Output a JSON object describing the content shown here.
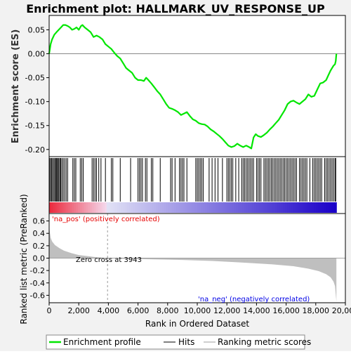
{
  "title": "Enrichment plot: HALLMARK_UV_RESPONSE_UP",
  "colors": {
    "profile": "#00e600",
    "hits": "#000000",
    "ranking": "#bfbfbf",
    "pos_label": "#e60000",
    "neg_label": "#0000e6",
    "zero_cross_line": "#999999"
  },
  "chart_data": [
    {
      "name": "enrichment-profile",
      "type": "line",
      "ylabel": "Enrichment score (ES)",
      "xlim": [
        0,
        20000
      ],
      "ylim": [
        -0.215,
        0.08
      ],
      "yticks": [
        "0.05",
        "0.00",
        "-0.05",
        "-0.10",
        "-0.15",
        "-0.20"
      ],
      "ytick_values": [
        0.05,
        0.0,
        -0.05,
        -0.1,
        -0.15,
        -0.2
      ],
      "grid": false,
      "series": [
        {
          "name": "Enrichment profile",
          "x": [
            0,
            100,
            200,
            350,
            500,
            650,
            800,
            950,
            1100,
            1250,
            1400,
            1550,
            1700,
            1850,
            2000,
            2150,
            2250,
            2400,
            2600,
            2800,
            3000,
            3200,
            3400,
            3600,
            3800,
            4000,
            4200,
            4400,
            4600,
            4800,
            5000,
            5200,
            5400,
            5600,
            5800,
            6000,
            6200,
            6400,
            6550,
            6700,
            6900,
            7100,
            7300,
            7500,
            7700,
            7900,
            8100,
            8300,
            8500,
            8700,
            8900,
            9100,
            9300,
            9500,
            9700,
            9900,
            10100,
            10300,
            10500,
            10700,
            10900,
            11100,
            11300,
            11500,
            11700,
            11900,
            12100,
            12300,
            12500,
            12700,
            12900,
            13100,
            13300,
            13500,
            13650,
            13800,
            13950,
            14100,
            14300,
            14500,
            14700,
            14900,
            15100,
            15300,
            15500,
            15700,
            15900,
            16100,
            16300,
            16500,
            16700,
            16900,
            17100,
            17300,
            17500,
            17700,
            17900,
            18100,
            18300,
            18500,
            18700,
            18850,
            19000,
            19100,
            19200,
            19300,
            19350,
            19395
          ],
          "y": [
            0.0,
            0.02,
            0.03,
            0.04,
            0.045,
            0.05,
            0.055,
            0.06,
            0.06,
            0.058,
            0.055,
            0.05,
            0.052,
            0.055,
            0.05,
            0.058,
            0.06,
            0.055,
            0.05,
            0.045,
            0.035,
            0.038,
            0.035,
            0.03,
            0.02,
            0.015,
            0.01,
            0.002,
            -0.005,
            -0.01,
            -0.02,
            -0.03,
            -0.035,
            -0.04,
            -0.05,
            -0.055,
            -0.055,
            -0.057,
            -0.05,
            -0.055,
            -0.062,
            -0.07,
            -0.078,
            -0.085,
            -0.095,
            -0.105,
            -0.113,
            -0.115,
            -0.118,
            -0.122,
            -0.128,
            -0.125,
            -0.122,
            -0.13,
            -0.137,
            -0.14,
            -0.145,
            -0.147,
            -0.148,
            -0.152,
            -0.158,
            -0.162,
            -0.167,
            -0.172,
            -0.178,
            -0.185,
            -0.192,
            -0.195,
            -0.193,
            -0.188,
            -0.192,
            -0.195,
            -0.192,
            -0.195,
            -0.198,
            -0.175,
            -0.168,
            -0.172,
            -0.174,
            -0.17,
            -0.165,
            -0.158,
            -0.152,
            -0.145,
            -0.138,
            -0.128,
            -0.118,
            -0.105,
            -0.1,
            -0.098,
            -0.102,
            -0.105,
            -0.1,
            -0.095,
            -0.085,
            -0.09,
            -0.088,
            -0.075,
            -0.062,
            -0.06,
            -0.055,
            -0.045,
            -0.035,
            -0.03,
            -0.025,
            -0.022,
            -0.015,
            0.0
          ]
        }
      ]
    },
    {
      "name": "hits-rug",
      "type": "scatter",
      "description_label": "Hits",
      "hit_positions": [
        40,
        120,
        180,
        250,
        330,
        400,
        470,
        520,
        580,
        650,
        720,
        780,
        860,
        950,
        1050,
        1150,
        1250,
        1600,
        1700,
        1800,
        2100,
        2200,
        2300,
        2900,
        3000,
        3100,
        3200,
        3350,
        3500,
        3800,
        4200,
        4300,
        4800,
        5500,
        6000,
        6100,
        6200,
        6300,
        6500,
        6600,
        6900,
        7000,
        7500,
        8200,
        8300,
        8500,
        8800,
        8900,
        9000,
        9100,
        9300,
        9900,
        10000,
        10100,
        10200,
        10300,
        10400,
        10800,
        11000,
        11200,
        11400,
        11700,
        12000,
        12100,
        12200,
        12300,
        12400,
        12600,
        12800,
        13000,
        13100,
        13200,
        13300,
        13400,
        13500,
        13600,
        13700,
        13800,
        14000,
        14100,
        14200,
        14300,
        14500,
        14600,
        14700,
        14800,
        14900,
        15000,
        15100,
        15200,
        15300,
        15400,
        15500,
        15600,
        15700,
        15800,
        15900,
        16000,
        16100,
        16200,
        16300,
        16400,
        16500,
        16600,
        16700,
        16900,
        17000,
        17100,
        17200,
        17300,
        17400,
        17600,
        17800,
        17900,
        18000,
        18100,
        18200,
        18300,
        18400,
        18600,
        18700,
        18800,
        18900,
        19000,
        19100,
        19200,
        19300,
        19350
      ]
    },
    {
      "name": "ranked-list-metric",
      "type": "area",
      "ylabel": "Ranked list metric (PreRanked)",
      "xlabel": "Rank in Ordered Dataset",
      "xlim": [
        0,
        20000
      ],
      "ylim": [
        -0.72,
        0.72
      ],
      "xticks": [
        "0",
        "2,000",
        "4,000",
        "6,000",
        "8,000",
        "10,000",
        "12,000",
        "14,000",
        "16,000",
        "18,000",
        "20,000"
      ],
      "xtick_values": [
        0,
        2000,
        4000,
        6000,
        8000,
        10000,
        12000,
        14000,
        16000,
        18000,
        20000
      ],
      "yticks": [
        "0.6",
        "0.4",
        "0.2",
        "0.0",
        "-0.2",
        "-0.4",
        "-0.6"
      ],
      "ytick_values": [
        0.6,
        0.4,
        0.2,
        0.0,
        -0.2,
        -0.4,
        -0.6
      ],
      "x": [
        0,
        30,
        100,
        200,
        400,
        700,
        1000,
        1500,
        2000,
        2500,
        3000,
        3500,
        3943,
        5000,
        7000,
        9000,
        11000,
        13000,
        15000,
        16500,
        17500,
        18200,
        18700,
        19000,
        19200,
        19300,
        19395
      ],
      "y": [
        0.65,
        0.45,
        0.33,
        0.27,
        0.21,
        0.16,
        0.12,
        0.08,
        0.05,
        0.035,
        0.02,
        0.01,
        0.0,
        -0.01,
        -0.02,
        -0.03,
        -0.045,
        -0.07,
        -0.1,
        -0.13,
        -0.17,
        -0.21,
        -0.26,
        -0.31,
        -0.38,
        -0.45,
        -0.7
      ],
      "annotations": {
        "zero_cross": "Zero cross at 3943",
        "zero_cross_value": 3943,
        "pos_label": "'na_pos' (positively correlated)",
        "neg_label": "'na_neg' (negatively correlated)"
      }
    }
  ],
  "legend": {
    "items": [
      {
        "label": "Enrichment profile",
        "style": "line",
        "color": "#00e600"
      },
      {
        "label": "Hits",
        "style": "line",
        "color": "#000000"
      },
      {
        "label": "Ranking metric scores",
        "style": "line",
        "color": "#bfbfbf"
      }
    ]
  }
}
